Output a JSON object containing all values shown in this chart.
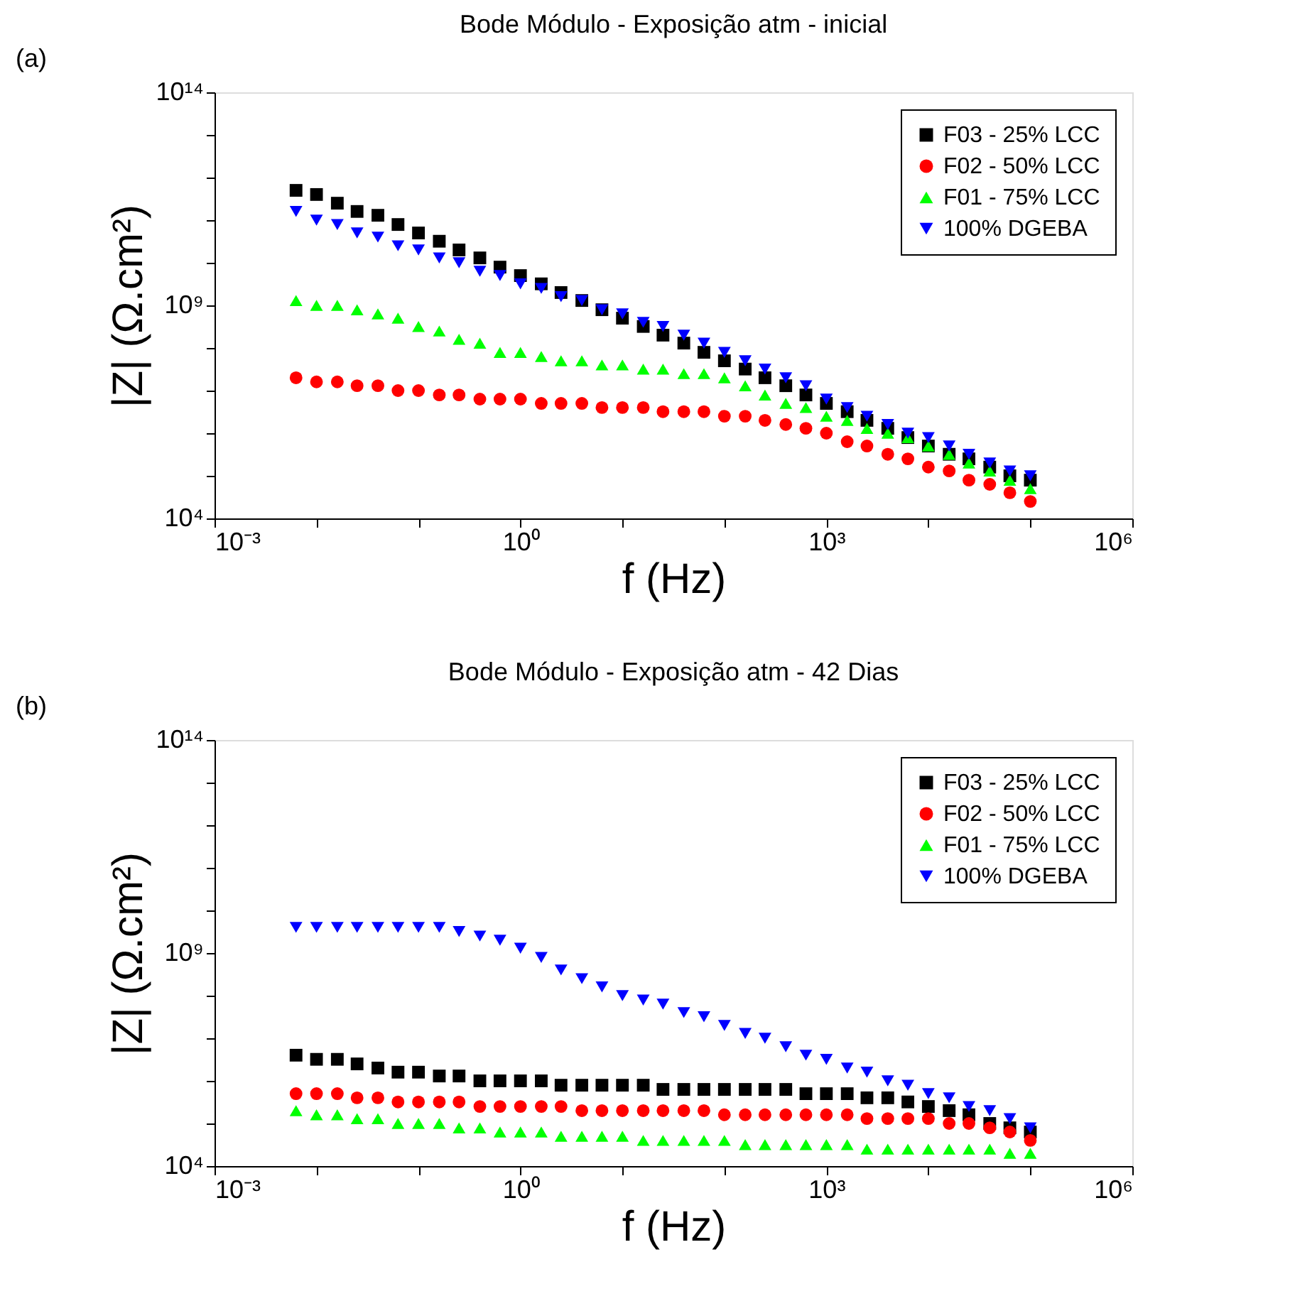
{
  "chart_data": [
    {
      "type": "scatter",
      "title": "Bode Módulo - Exposição atm - inicial",
      "xlabel": "f (Hz)",
      "ylabel": "|Z| (Ω.cm²)",
      "annotations": [
        "(a)"
      ],
      "log": "xy",
      "grid": false,
      "legend": "top right",
      "xlim": [
        0.001,
        1000000
      ],
      "ylim": [
        10000,
        100000000000000
      ],
      "xticks": [
        {
          "value": 0.001,
          "label": "10⁻³"
        },
        {
          "value": 0.01,
          "label": null
        },
        {
          "value": 0.1,
          "label": null
        },
        {
          "value": 1,
          "label": "10⁰"
        },
        {
          "value": 10,
          "label": null
        },
        {
          "value": 100,
          "label": null
        },
        {
          "value": 1000,
          "label": "10³"
        },
        {
          "value": 10000,
          "label": null
        },
        {
          "value": 100000,
          "label": null
        },
        {
          "value": 1000000,
          "label": "10⁶"
        }
      ],
      "yticks": [
        {
          "value": 10000,
          "label": "10⁴"
        },
        {
          "value": 100000,
          "label": null
        },
        {
          "value": 1000000,
          "label": null
        },
        {
          "value": 10000000,
          "label": null
        },
        {
          "value": 100000000,
          "label": null
        },
        {
          "value": 1000000000,
          "label": "10⁹"
        },
        {
          "value": 10000000000,
          "label": null
        },
        {
          "value": 100000000000,
          "label": null
        },
        {
          "value": 1000000000000,
          "label": null
        },
        {
          "value": 10000000000000,
          "label": null
        },
        {
          "value": 100000000000000,
          "label": "10¹⁴"
        }
      ],
      "x": [
        0.0063,
        0.01,
        0.016,
        0.025,
        0.04,
        0.063,
        0.1,
        0.16,
        0.25,
        0.4,
        0.63,
        1,
        1.6,
        2.5,
        4,
        6.3,
        10,
        16,
        25,
        40,
        63,
        100,
        160,
        250,
        400,
        630,
        1000,
        1600,
        2500,
        4000,
        6300,
        10000,
        16000,
        25000,
        40000,
        63000,
        100000
      ],
      "series": [
        {
          "name": "F03 - 25% LCC",
          "color": "#000000",
          "marker": "square",
          "values": [
            500000000000.0,
            400000000000.0,
            250000000000.0,
            160000000000.0,
            130000000000.0,
            79000000000.0,
            50000000000.0,
            32000000000.0,
            20000000000.0,
            13000000000.0,
            7900000000.0,
            5000000000.0,
            3200000000.0,
            2000000000.0,
            1300000000.0,
            790000000.0,
            500000000.0,
            320000000.0,
            200000000.0,
            130000000.0,
            79000000.0,
            50000000.0,
            32000000.0,
            20000000.0,
            13000000.0,
            7900000.0,
            5000000.0,
            3200000.0,
            2000000.0,
            1300000.0,
            790000.0,
            500000.0,
            320000.0,
            250000.0,
            160000.0,
            100000.0,
            79000.0
          ]
        },
        {
          "name": "F02 - 50% LCC",
          "color": "#ff0000",
          "marker": "circle",
          "values": [
            20000000.0,
            16000000.0,
            16000000.0,
            13000000.0,
            13000000.0,
            10000000.0,
            10000000.0,
            7900000.0,
            7900000.0,
            6300000.0,
            6300000.0,
            6300000.0,
            5000000.0,
            5000000.0,
            5000000.0,
            4000000.0,
            4000000.0,
            4000000.0,
            3200000.0,
            3200000.0,
            3200000.0,
            2500000.0,
            2500000.0,
            2000000.0,
            1600000.0,
            1300000.0,
            1000000.0,
            630000.0,
            500000.0,
            320000.0,
            250000.0,
            160000.0,
            130000.0,
            79000.0,
            63000.0,
            40000.0,
            25000.0
          ]
        },
        {
          "name": "F01 - 75% LCC",
          "color": "#00ff00",
          "marker": "triangle",
          "values": [
            1300000000.0,
            1000000000.0,
            1000000000.0,
            790000000.0,
            630000000.0,
            500000000.0,
            320000000.0,
            250000000.0,
            160000000.0,
            130000000.0,
            79000000.0,
            79000000.0,
            63000000.0,
            50000000.0,
            50000000.0,
            40000000.0,
            40000000.0,
            32000000.0,
            32000000.0,
            25000000.0,
            25000000.0,
            20000000.0,
            13000000.0,
            7900000.0,
            5000000.0,
            4000000.0,
            2500000.0,
            2000000.0,
            1300000.0,
            1000000.0,
            790000.0,
            500000.0,
            320000.0,
            200000.0,
            130000.0,
            79000.0,
            50000.0
          ]
        },
        {
          "name": "100% DGEBA",
          "color": "#0000ff",
          "marker": "triangle-down",
          "values": [
            160000000000.0,
            100000000000.0,
            79000000000.0,
            50000000000.0,
            40000000000.0,
            25000000000.0,
            20000000000.0,
            13000000000.0,
            10000000000.0,
            6300000000.0,
            5000000000.0,
            3200000000.0,
            2500000000.0,
            1600000000.0,
            1300000000.0,
            790000000.0,
            630000000.0,
            400000000.0,
            320000000.0,
            200000000.0,
            130000000.0,
            79000000.0,
            50000000.0,
            32000000.0,
            20000000.0,
            13000000.0,
            6300000.0,
            4000000.0,
            2500000.0,
            1600000.0,
            1000000.0,
            790000.0,
            500000.0,
            320000.0,
            200000.0,
            130000.0,
            100000.0
          ]
        }
      ]
    },
    {
      "type": "scatter",
      "title": "Bode Módulo - Exposição atm - 42 Dias",
      "xlabel": "f (Hz)",
      "ylabel": "|Z| (Ω.cm²)",
      "annotations": [
        "(b)"
      ],
      "log": "xy",
      "grid": false,
      "legend": "top right",
      "xlim": [
        0.001,
        1000000
      ],
      "ylim": [
        10000,
        100000000000000
      ],
      "xticks": [
        {
          "value": 0.001,
          "label": "10⁻³"
        },
        {
          "value": 0.01,
          "label": null
        },
        {
          "value": 0.1,
          "label": null
        },
        {
          "value": 1,
          "label": "10⁰"
        },
        {
          "value": 10,
          "label": null
        },
        {
          "value": 100,
          "label": null
        },
        {
          "value": 1000,
          "label": "10³"
        },
        {
          "value": 10000,
          "label": null
        },
        {
          "value": 100000,
          "label": null
        },
        {
          "value": 1000000,
          "label": "10⁶"
        }
      ],
      "yticks": [
        {
          "value": 10000,
          "label": "10⁴"
        },
        {
          "value": 100000,
          "label": null
        },
        {
          "value": 1000000,
          "label": null
        },
        {
          "value": 10000000,
          "label": null
        },
        {
          "value": 100000000,
          "label": null
        },
        {
          "value": 1000000000,
          "label": "10⁹"
        },
        {
          "value": 10000000000,
          "label": null
        },
        {
          "value": 100000000000,
          "label": null
        },
        {
          "value": 1000000000000,
          "label": null
        },
        {
          "value": 10000000000000,
          "label": null
        },
        {
          "value": 100000000000000,
          "label": "10¹⁴"
        }
      ],
      "x": [
        0.0063,
        0.01,
        0.016,
        0.025,
        0.04,
        0.063,
        0.1,
        0.16,
        0.25,
        0.4,
        0.63,
        1,
        1.6,
        2.5,
        4,
        6.3,
        10,
        16,
        25,
        40,
        63,
        100,
        160,
        250,
        400,
        630,
        1000,
        1600,
        2500,
        4000,
        6300,
        10000,
        16000,
        25000,
        40000,
        63000,
        100000
      ],
      "series": [
        {
          "name": "F03 - 25% LCC",
          "color": "#000000",
          "marker": "square",
          "values": [
            4000000.0,
            3200000.0,
            3200000.0,
            2500000.0,
            2000000.0,
            1600000.0,
            1600000.0,
            1300000.0,
            1300000.0,
            1000000.0,
            1000000.0,
            1000000.0,
            1000000.0,
            790000.0,
            790000.0,
            790000.0,
            790000.0,
            790000.0,
            630000.0,
            630000.0,
            630000.0,
            630000.0,
            630000.0,
            630000.0,
            630000.0,
            500000.0,
            500000.0,
            500000.0,
            400000.0,
            400000.0,
            320000.0,
            250000.0,
            200000.0,
            160000.0,
            100000.0,
            79000.0,
            63000.0
          ]
        },
        {
          "name": "F02 - 50% LCC",
          "color": "#ff0000",
          "marker": "circle",
          "values": [
            500000.0,
            500000.0,
            500000.0,
            400000.0,
            400000.0,
            320000.0,
            320000.0,
            320000.0,
            320000.0,
            250000.0,
            250000.0,
            250000.0,
            250000.0,
            250000.0,
            200000.0,
            200000.0,
            200000.0,
            200000.0,
            200000.0,
            200000.0,
            200000.0,
            160000.0,
            160000.0,
            160000.0,
            160000.0,
            160000.0,
            160000.0,
            160000.0,
            130000.0,
            130000.0,
            130000.0,
            130000.0,
            100000.0,
            100000.0,
            79000.0,
            63000.0,
            40000.0
          ]
        },
        {
          "name": "F01 - 75% LCC",
          "color": "#00ff00",
          "marker": "triangle",
          "values": [
            200000.0,
            160000.0,
            160000.0,
            130000.0,
            130000.0,
            100000.0,
            100000.0,
            100000.0,
            79000.0,
            79000.0,
            63000.0,
            63000.0,
            63000.0,
            50000.0,
            50000.0,
            50000.0,
            50000.0,
            40000.0,
            40000.0,
            40000.0,
            40000.0,
            40000.0,
            32000.0,
            32000.0,
            32000.0,
            32000.0,
            32000.0,
            32000.0,
            25000.0,
            25000.0,
            25000.0,
            25000.0,
            25000.0,
            25000.0,
            25000.0,
            20000.0,
            20000.0
          ]
        },
        {
          "name": "100% DGEBA",
          "color": "#0000ff",
          "marker": "triangle-down",
          "values": [
            4000000000.0,
            4000000000.0,
            4000000000.0,
            4000000000.0,
            4000000000.0,
            4000000000.0,
            4000000000.0,
            4000000000.0,
            3200000000.0,
            2500000000.0,
            2000000000.0,
            1300000000.0,
            790000000.0,
            400000000.0,
            250000000.0,
            160000000.0,
            100000000.0,
            79000000.0,
            63000000.0,
            40000000.0,
            32000000.0,
            20000000.0,
            13000000.0,
            10000000.0,
            6300000.0,
            4000000.0,
            3200000.0,
            2000000.0,
            1600000.0,
            1000000.0,
            790000.0,
            500000.0,
            400000.0,
            250000.0,
            200000.0,
            130000.0,
            79000.0
          ]
        }
      ]
    }
  ]
}
